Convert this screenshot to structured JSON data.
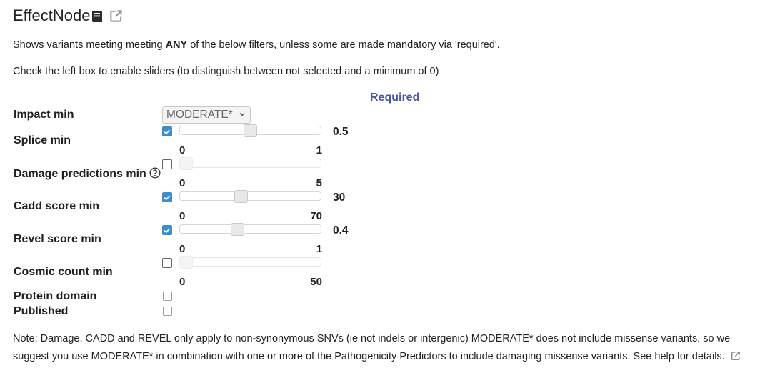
{
  "header": {
    "title": "EffectNode",
    "book_icon": "book-icon",
    "external_link_icon": "external-link-icon"
  },
  "intro": {
    "line1_before": "Shows variants meeting meeting ",
    "line1_bold": "ANY",
    "line1_after": " of the below filters, unless some are made mandatory via 'required'.",
    "line2": "Check the left box to enable sliders (to distinguish between not selected and a minimum of 0)"
  },
  "required_header": "Required",
  "impact": {
    "label": "Impact min",
    "selected": "MODERATE*"
  },
  "sliders": [
    {
      "label": "Splice min",
      "enabled": true,
      "value": "0.5",
      "min": "0",
      "max": "1",
      "fraction": 0.5
    },
    {
      "label": "Damage predictions min",
      "enabled": false,
      "value": "",
      "min": "0",
      "max": "5",
      "fraction": 0,
      "help_icon": "question-circle-icon"
    },
    {
      "label": "Cadd score min",
      "enabled": true,
      "value": "30",
      "min": "0",
      "max": "70",
      "fraction": 0.4286
    },
    {
      "label": "Revel score min",
      "enabled": true,
      "value": "0.4",
      "min": "0",
      "max": "1",
      "fraction": 0.4
    },
    {
      "label": "Cosmic count min",
      "enabled": false,
      "value": "",
      "min": "0",
      "max": "50",
      "fraction": 0
    }
  ],
  "protein_domain": {
    "label": "Protein domain",
    "checked": false
  },
  "published": {
    "label": "Published",
    "checked": false
  },
  "note": {
    "text": "Note: Damage, CADD and REVEL only apply to non-synonymous SNVs (ie not indels or intergenic) MODERATE* does not include missense variants, so we suggest you use MODERATE* in combination with one or more of the Pathogenicity Predictors to include damaging missense variants. See help for details.",
    "link_icon": "external-link-icon"
  },
  "colors": {
    "checkbox_checked": "#3d8ec8",
    "required_header": "#4b57a3"
  }
}
